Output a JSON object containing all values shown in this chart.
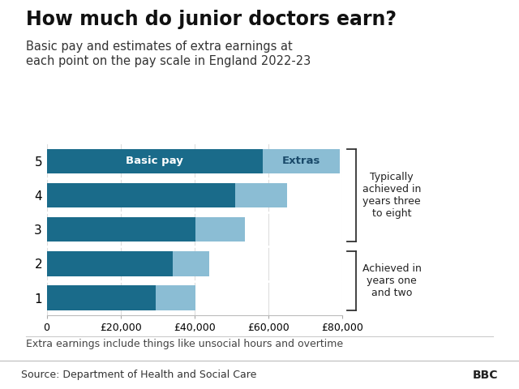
{
  "title": "How much do junior doctors earn?",
  "subtitle": "Basic pay and estimates of extra earnings at\neach point on the pay scale in England 2022-23",
  "footnote": "Extra earnings include things like unsocial hours and overtime",
  "source": "Source: Department of Health and Social Care",
  "bbc_label": "BBC",
  "categories": [
    "1",
    "2",
    "3",
    "4",
    "5"
  ],
  "basic_pay": [
    29384,
    34012,
    40257,
    51017,
    58398
  ],
  "total_pay": [
    40257,
    43923,
    53682,
    65022,
    79179
  ],
  "bar_color_basic": "#1a6b8a",
  "bar_color_extras": "#8bbdd4",
  "background_color": "#ffffff",
  "label_basic": "Basic pay",
  "label_extras": "Extras",
  "xlim": [
    0,
    80000
  ],
  "xtick_values": [
    0,
    20000,
    40000,
    60000,
    80000
  ],
  "xtick_labels": [
    "0",
    "£20,000",
    "£40,000",
    "£60,000",
    "£80,000"
  ],
  "title_fontsize": 17,
  "subtitle_fontsize": 10.5,
  "bar_height": 0.72,
  "footnote_fontsize": 9,
  "source_fontsize": 9
}
